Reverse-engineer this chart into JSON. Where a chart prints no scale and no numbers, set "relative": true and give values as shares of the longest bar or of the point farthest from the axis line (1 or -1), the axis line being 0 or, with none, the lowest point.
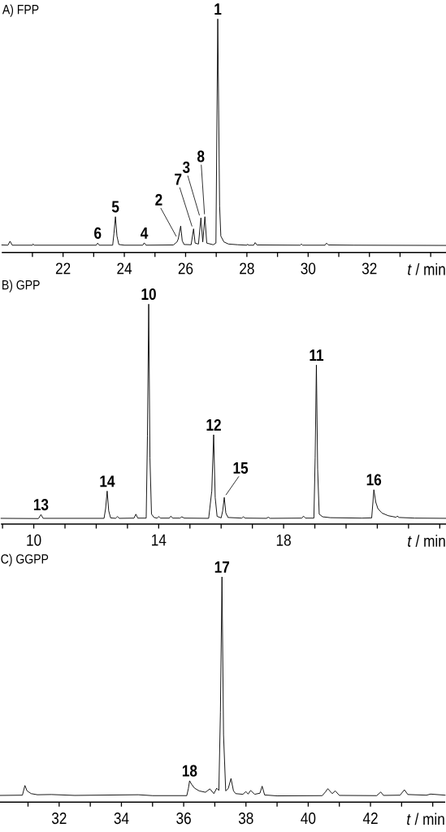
{
  "chart_data": [
    {
      "type": "line",
      "title": "A) FPP",
      "xlabel": "*t* / min",
      "relative": true,
      "color": "#000000",
      "line_style": "solid",
      "xlim": [
        20,
        34.5
      ],
      "xticks": [
        {
          "value": 21,
          "label": null
        },
        22,
        {
          "value": 23,
          "label": null
        },
        24,
        {
          "value": 25,
          "label": null
        },
        26,
        {
          "value": 27,
          "label": null
        },
        28,
        {
          "value": 29,
          "label": null
        },
        30,
        {
          "value": 31,
          "label": null
        },
        32,
        {
          "value": 33,
          "label": null
        },
        {
          "value": 34,
          "label": null
        }
      ],
      "x": [
        20.0,
        20.2,
        20.27,
        20.34,
        21.0,
        21.02,
        21.06,
        22.0,
        23.08,
        23.13,
        23.18,
        23.62,
        23.66,
        23.71,
        23.76,
        23.82,
        24.0,
        24.6,
        24.65,
        24.71,
        25.6,
        25.72,
        25.76,
        25.84,
        25.89,
        25.95,
        26.18,
        26.26,
        26.31,
        26.42,
        26.5,
        26.56,
        26.63,
        26.69,
        26.9,
        26.99,
        27.05,
        27.11,
        27.15,
        27.25,
        27.4,
        27.7,
        28.0,
        28.02,
        28.06,
        28.22,
        28.27,
        28.33,
        29.74,
        29.78,
        29.82,
        30.55,
        30.6,
        30.66,
        31.5,
        34.5
      ],
      "values": [
        0.032,
        0.031,
        0.048,
        0.031,
        0.031,
        0.036,
        0.031,
        0.031,
        0.031,
        0.04,
        0.031,
        0.031,
        0.08,
        0.153,
        0.07,
        0.034,
        0.031,
        0.031,
        0.041,
        0.031,
        0.032,
        0.045,
        0.058,
        0.113,
        0.05,
        0.034,
        0.033,
        0.101,
        0.04,
        0.036,
        0.148,
        0.045,
        0.153,
        0.04,
        0.033,
        0.04,
        1.0,
        0.2,
        0.07,
        0.045,
        0.036,
        0.033,
        0.031,
        0.035,
        0.031,
        0.031,
        0.042,
        0.032,
        0.031,
        0.036,
        0.031,
        0.031,
        0.04,
        0.032,
        0.031,
        0.03
      ],
      "annotations": [
        {
          "text": "6",
          "x": 23.13,
          "y": 0.04
        },
        {
          "text": "5",
          "x": 23.71,
          "y": 0.153
        },
        {
          "text": "4",
          "x": 24.65,
          "y": 0.041
        },
        {
          "text": "2",
          "x": 25.76,
          "y": 0.058
        },
        {
          "text": "7",
          "x": 26.26,
          "y": 0.101
        },
        {
          "text": "3",
          "x": 26.5,
          "y": 0.148
        },
        {
          "text": "8",
          "x": 26.63,
          "y": 0.153
        },
        {
          "text": "1",
          "x": 27.05,
          "y": 1.0
        }
      ]
    },
    {
      "type": "line",
      "title": "B) GPP",
      "xlabel": "*t* / min",
      "relative": true,
      "color": "#000000",
      "line_style": "solid",
      "xlim": [
        8.95,
        23.2
      ],
      "xticks": [
        {
          "value": 9,
          "label": null
        },
        10,
        {
          "value": 11,
          "label": null
        },
        {
          "value": 12,
          "label": null
        },
        {
          "value": 13,
          "label": null
        },
        14,
        {
          "value": 15,
          "label": null
        },
        {
          "value": 16,
          "label": null
        },
        {
          "value": 17,
          "label": null
        },
        18,
        {
          "value": 19,
          "label": null
        },
        {
          "value": 20,
          "label": null
        },
        {
          "value": 21,
          "label": null
        },
        {
          "value": 22,
          "label": null
        },
        {
          "value": 23,
          "label": null
        }
      ],
      "x": [
        8.95,
        10.15,
        10.23,
        10.3,
        12.25,
        12.3,
        12.35,
        12.4,
        12.46,
        12.62,
        12.68,
        12.74,
        13.21,
        13.27,
        13.33,
        13.6,
        13.64,
        13.68,
        13.72,
        13.77,
        13.85,
        13.95,
        14.0,
        14.06,
        14.34,
        14.39,
        14.45,
        14.68,
        14.74,
        14.82,
        15.6,
        15.7,
        15.76,
        15.81,
        15.87,
        16.0,
        16.05,
        16.1,
        16.15,
        16.22,
        16.66,
        16.71,
        16.77,
        17.45,
        17.51,
        17.57,
        18.58,
        18.64,
        18.7,
        18.97,
        19.01,
        19.05,
        19.09,
        19.14,
        19.25,
        19.5,
        20.5,
        20.82,
        20.86,
        20.89,
        20.95,
        21.02,
        21.15,
        21.35,
        21.6,
        21.64,
        21.7,
        22.2,
        23.2
      ],
      "values": [
        0.026,
        0.025,
        0.043,
        0.026,
        0.026,
        0.07,
        0.15,
        0.06,
        0.028,
        0.026,
        0.034,
        0.026,
        0.027,
        0.045,
        0.027,
        0.027,
        0.4,
        1.0,
        0.3,
        0.045,
        0.03,
        0.027,
        0.034,
        0.027,
        0.027,
        0.036,
        0.027,
        0.027,
        0.033,
        0.027,
        0.026,
        0.15,
        0.406,
        0.12,
        0.035,
        0.028,
        0.06,
        0.121,
        0.05,
        0.03,
        0.027,
        0.033,
        0.027,
        0.026,
        0.031,
        0.026,
        0.027,
        0.036,
        0.027,
        0.027,
        0.3,
        0.723,
        0.25,
        0.045,
        0.033,
        0.029,
        0.027,
        0.028,
        0.1,
        0.156,
        0.1,
        0.07,
        0.05,
        0.038,
        0.031,
        0.036,
        0.03,
        0.027,
        0.026
      ],
      "annotations": [
        {
          "text": "13",
          "x": 10.23,
          "y": 0.043
        },
        {
          "text": "14",
          "x": 12.35,
          "y": 0.15
        },
        {
          "text": "10",
          "x": 13.68,
          "y": 1.0
        },
        {
          "text": "12",
          "x": 15.76,
          "y": 0.406
        },
        {
          "text": "15",
          "x": 16.1,
          "y": 0.121
        },
        {
          "text": "11",
          "x": 19.05,
          "y": 0.723
        },
        {
          "text": "16",
          "x": 20.89,
          "y": 0.156
        }
      ]
    },
    {
      "type": "line",
      "title": "C) GGPP",
      "xlabel": "*t* / min",
      "relative": true,
      "color": "#000000",
      "line_style": "solid",
      "xlim": [
        30.1,
        44.4
      ],
      "xticks": [
        {
          "value": 31,
          "label": null
        },
        32,
        {
          "value": 33,
          "label": null
        },
        34,
        {
          "value": 35,
          "label": null
        },
        36,
        {
          "value": 37,
          "label": null
        },
        38,
        {
          "value": 39,
          "label": null
        },
        40,
        {
          "value": 41,
          "label": null
        },
        42,
        {
          "value": 43,
          "label": null
        },
        {
          "value": 44,
          "label": null
        }
      ],
      "x": [
        30.1,
        30.82,
        30.9,
        30.97,
        31.1,
        31.3,
        31.75,
        32.5,
        34.54,
        35.0,
        36.1,
        36.15,
        36.19,
        36.25,
        36.35,
        36.5,
        36.7,
        36.84,
        36.97,
        37.06,
        37.13,
        37.18,
        37.23,
        37.28,
        37.35,
        37.43,
        37.52,
        37.6,
        37.67,
        37.9,
        38.0,
        38.07,
        38.15,
        38.28,
        38.45,
        38.52,
        38.6,
        39.0,
        40.45,
        40.55,
        40.63,
        40.77,
        40.87,
        41.0,
        42.2,
        42.33,
        42.42,
        42.95,
        43.09,
        43.2,
        43.8,
        43.93,
        44.4
      ],
      "values": [
        0.03,
        0.031,
        0.074,
        0.05,
        0.038,
        0.033,
        0.034,
        0.03,
        0.033,
        0.029,
        0.029,
        0.06,
        0.095,
        0.08,
        0.062,
        0.05,
        0.044,
        0.059,
        0.038,
        0.062,
        0.052,
        0.4,
        1.0,
        0.3,
        0.05,
        0.06,
        0.105,
        0.05,
        0.038,
        0.035,
        0.047,
        0.036,
        0.052,
        0.035,
        0.04,
        0.071,
        0.032,
        0.028,
        0.029,
        0.045,
        0.06,
        0.038,
        0.05,
        0.03,
        0.029,
        0.045,
        0.03,
        0.031,
        0.055,
        0.034,
        0.031,
        0.036,
        0.031
      ],
      "annotations": [
        {
          "text": "18",
          "x": 36.19,
          "y": 0.095
        },
        {
          "text": "17",
          "x": 37.23,
          "y": 1.0
        }
      ]
    }
  ]
}
